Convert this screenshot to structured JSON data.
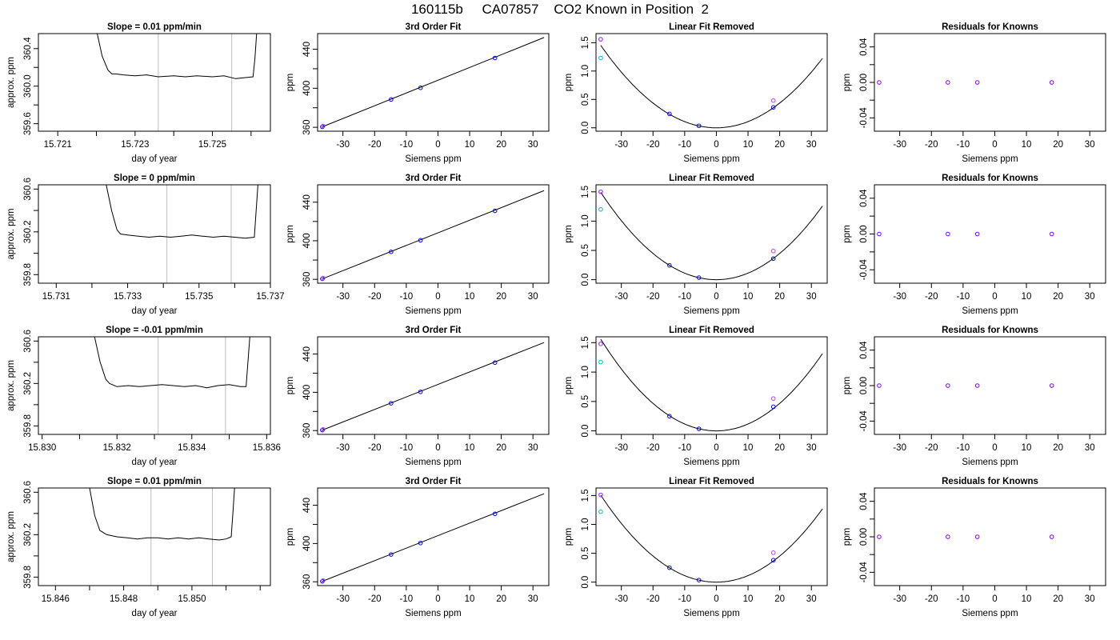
{
  "page": {
    "title": "160115b     CA07857    CO2 Known in Position  2",
    "colors": {
      "axis": "#000000",
      "fit_line": "#000000",
      "vline": "#bebebe",
      "point_blue": "#0000ff",
      "point_cyan": "#00bcd4",
      "point_magenta": "#c23bff",
      "point_violet": "#8000ff"
    }
  },
  "chart_data": [
    {
      "row": 0,
      "panel": "timeseries",
      "type": "line",
      "title": "Slope =  0.01  ppm/min",
      "xlabel": "day of year",
      "ylabel": "approx. ppm",
      "xlim": [
        15.7205,
        15.7265
      ],
      "ylim": [
        359.52,
        360.56
      ],
      "xticks": [
        15.721,
        15.722,
        15.723,
        15.724,
        15.725,
        15.726
      ],
      "xtick_labels": [
        "15.721",
        "",
        "15.723",
        "",
        "15.725",
        ""
      ],
      "yticks": [
        359.6,
        359.8,
        360.0,
        360.2,
        360.4
      ],
      "ytick_labels": [
        "359.6",
        "",
        "360.0",
        "",
        "360.4"
      ],
      "vlines": [
        15.7236,
        15.7255
      ],
      "series": [
        {
          "x": [
            15.722,
            15.72215,
            15.7223,
            15.7224,
            15.7225,
            15.7227,
            15.723,
            15.7233,
            15.7236,
            15.724,
            15.7243,
            15.7246,
            15.725,
            15.7253,
            15.7256,
            15.72605,
            15.7261,
            15.72615
          ],
          "y": [
            360.6,
            360.32,
            360.17,
            360.13,
            360.13,
            360.12,
            360.11,
            360.12,
            360.1,
            360.11,
            360.1,
            360.11,
            360.1,
            360.11,
            360.08,
            360.1,
            360.3,
            360.6
          ]
        }
      ]
    },
    {
      "row": 0,
      "panel": "fit",
      "type": "scatter",
      "title": "3rd Order Fit",
      "xlabel": "Siemens ppm",
      "ylabel": "ppm",
      "xlim": [
        -38,
        35
      ],
      "ylim": [
        356,
        456
      ],
      "xticks": [
        -30,
        -20,
        -10,
        0,
        10,
        20,
        30
      ],
      "xtick_labels": [
        "-30",
        "-20",
        "-10",
        "0",
        "10",
        "20",
        "30"
      ],
      "yticks": [
        360,
        380,
        400,
        420,
        440
      ],
      "ytick_labels": [
        "360",
        "",
        "400",
        "",
        "440"
      ],
      "line": {
        "x": [
          -36.5,
          33.5
        ],
        "y": [
          360.5,
          452
        ]
      },
      "points": {
        "x": [
          -36.5,
          -14.8,
          -5.5,
          18
        ],
        "y": [
          360.5,
          388.5,
          400.5,
          431
        ]
      }
    },
    {
      "row": 0,
      "panel": "linear_removed",
      "type": "scatter",
      "title": "Linear Fit Removed",
      "xlabel": "Siemens ppm",
      "ylabel": "ppm",
      "xlim": [
        -38,
        35
      ],
      "ylim": [
        -0.06,
        1.66
      ],
      "xticks": [
        -30,
        -20,
        -10,
        0,
        10,
        20,
        30
      ],
      "xtick_labels": [
        "-30",
        "-20",
        "-10",
        "0",
        "10",
        "20",
        "30"
      ],
      "yticks": [
        0.0,
        0.5,
        1.0,
        1.5
      ],
      "ytick_labels": [
        "0.0",
        "0.5",
        "1.0",
        "1.5"
      ],
      "curve_coef": 0.00109,
      "points_blue": {
        "x": [
          -36.5,
          -14.8,
          -5.5,
          18
        ],
        "y": [
          1.56,
          0.245,
          0.035,
          0.36
        ]
      },
      "points_cyan": {
        "x": [
          -36.5
        ],
        "y": [
          1.23
        ]
      },
      "points_magenta": {
        "x": [
          -36.5,
          18
        ],
        "y": [
          1.56,
          0.48
        ]
      }
    },
    {
      "row": 0,
      "panel": "residuals",
      "type": "scatter",
      "title": "Residuals for Knowns",
      "xlabel": "Siemens ppm",
      "ylabel": "ppm",
      "xlim": [
        -38,
        35
      ],
      "ylim": [
        -0.055,
        0.055
      ],
      "xticks": [
        -30,
        -20,
        -10,
        0,
        10,
        20,
        30
      ],
      "xtick_labels": [
        "-30",
        "-20",
        "-10",
        "0",
        "10",
        "20",
        "30"
      ],
      "yticks": [
        -0.04,
        -0.02,
        0.0,
        0.02,
        0.04
      ],
      "ytick_labels": [
        "-0.04",
        "",
        "0.00",
        "",
        "0.04"
      ],
      "points": {
        "x": [
          -36.5,
          -14.8,
          -5.5,
          18
        ],
        "y": [
          0,
          0,
          0,
          0
        ]
      }
    },
    {
      "row": 1,
      "panel": "timeseries",
      "type": "line",
      "title": "Slope =  0  ppm/min",
      "xlabel": "day of year",
      "ylabel": "approx. ppm",
      "xlim": [
        15.7305,
        15.737
      ],
      "ylim": [
        359.72,
        360.64
      ],
      "xticks": [
        15.731,
        15.732,
        15.733,
        15.734,
        15.735,
        15.736,
        15.737
      ],
      "xtick_labels": [
        "15.731",
        "",
        "15.733",
        "",
        "15.735",
        "",
        "15.737"
      ],
      "yticks": [
        359.8,
        360.0,
        360.2,
        360.4,
        360.6
      ],
      "ytick_labels": [
        "359.8",
        "",
        "360.2",
        "",
        "360.6"
      ],
      "vlines": [
        15.7341,
        15.7359
      ],
      "series": [
        {
          "x": [
            15.7324,
            15.73255,
            15.7327,
            15.7328,
            15.733,
            15.7333,
            15.7336,
            15.7339,
            15.7342,
            15.7345,
            15.7348,
            15.7351,
            15.7354,
            15.7357,
            15.736,
            15.7363,
            15.73655,
            15.7366,
            15.73665
          ],
          "y": [
            360.64,
            360.4,
            360.22,
            360.18,
            360.17,
            360.16,
            360.15,
            360.16,
            360.15,
            360.16,
            360.17,
            360.16,
            360.15,
            360.16,
            360.15,
            360.14,
            360.15,
            360.4,
            360.64
          ]
        }
      ]
    },
    {
      "row": 1,
      "panel": "fit",
      "type": "scatter",
      "title": "3rd Order Fit",
      "xlabel": "Siemens ppm",
      "ylabel": "ppm",
      "xlim": [
        -38,
        35
      ],
      "ylim": [
        356,
        458
      ],
      "xticks": [
        -30,
        -20,
        -10,
        0,
        10,
        20,
        30
      ],
      "xtick_labels": [
        "-30",
        "-20",
        "-10",
        "0",
        "10",
        "20",
        "30"
      ],
      "yticks": [
        360,
        380,
        400,
        420,
        440
      ],
      "ytick_labels": [
        "360",
        "",
        "400",
        "",
        "440"
      ],
      "line": {
        "x": [
          -36.5,
          33.5
        ],
        "y": [
          360.5,
          452
        ]
      },
      "points": {
        "x": [
          -36.5,
          -14.8,
          -5.5,
          18
        ],
        "y": [
          360.5,
          388.5,
          400.5,
          431
        ]
      }
    },
    {
      "row": 1,
      "panel": "linear_removed",
      "type": "scatter",
      "title": "Linear Fit Removed",
      "xlabel": "Siemens ppm",
      "ylabel": "ppm",
      "xlim": [
        -38,
        35
      ],
      "ylim": [
        -0.06,
        1.62
      ],
      "xticks": [
        -30,
        -20,
        -10,
        0,
        10,
        20,
        30
      ],
      "xtick_labels": [
        "-30",
        "-20",
        "-10",
        "0",
        "10",
        "20",
        "30"
      ],
      "yticks": [
        0.0,
        0.5,
        1.0,
        1.5
      ],
      "ytick_labels": [
        "0.0",
        "0.5",
        "1.0",
        "1.5"
      ],
      "curve_coef": 0.00112,
      "points_blue": {
        "x": [
          -36.5,
          -14.8,
          -5.5,
          18
        ],
        "y": [
          1.5,
          0.245,
          0.035,
          0.36
        ]
      },
      "points_cyan": {
        "x": [
          -36.5
        ],
        "y": [
          1.2
        ]
      },
      "points_magenta": {
        "x": [
          -36.5,
          18
        ],
        "y": [
          1.5,
          0.49
        ]
      }
    },
    {
      "row": 1,
      "panel": "residuals",
      "type": "scatter",
      "title": "Residuals for Knowns",
      "xlabel": "Siemens ppm",
      "ylabel": "ppm",
      "xlim": [
        -38,
        35
      ],
      "ylim": [
        -0.055,
        0.055
      ],
      "xticks": [
        -30,
        -20,
        -10,
        0,
        10,
        20,
        30
      ],
      "xtick_labels": [
        "-30",
        "-20",
        "-10",
        "0",
        "10",
        "20",
        "30"
      ],
      "yticks": [
        -0.04,
        -0.02,
        0.0,
        0.02,
        0.04
      ],
      "ytick_labels": [
        "-0.04",
        "",
        "0.00",
        "",
        "0.04"
      ],
      "points": {
        "x": [
          -36.5,
          -14.8,
          -5.5,
          18
        ],
        "y": [
          0,
          0,
          0,
          0
        ]
      }
    },
    {
      "row": 2,
      "panel": "timeseries",
      "type": "line",
      "title": "Slope =  -0.01  ppm/min",
      "xlabel": "day of year",
      "ylabel": "approx. ppm",
      "xlim": [
        15.8299,
        15.8361
      ],
      "ylim": [
        359.72,
        360.64
      ],
      "xticks": [
        15.83,
        15.831,
        15.832,
        15.833,
        15.834,
        15.835,
        15.836
      ],
      "xtick_labels": [
        "15.830",
        "",
        "15.832",
        "",
        "15.834",
        "",
        "15.836"
      ],
      "yticks": [
        359.8,
        360.0,
        360.2,
        360.4,
        360.6
      ],
      "ytick_labels": [
        "359.8",
        "",
        "360.2",
        "",
        "360.6"
      ],
      "vlines": [
        15.8331,
        15.8349
      ],
      "series": [
        {
          "x": [
            15.8314,
            15.83155,
            15.8317,
            15.8318,
            15.832,
            15.8323,
            15.8326,
            15.8329,
            15.8332,
            15.8335,
            15.8338,
            15.8341,
            15.8344,
            15.8347,
            15.835,
            15.8353,
            15.83545,
            15.8355,
            15.83555
          ],
          "y": [
            360.64,
            360.4,
            360.24,
            360.2,
            360.17,
            360.18,
            360.17,
            360.18,
            360.19,
            360.18,
            360.17,
            360.18,
            360.16,
            360.18,
            360.19,
            360.17,
            360.17,
            360.4,
            360.64
          ]
        }
      ]
    },
    {
      "row": 2,
      "panel": "fit",
      "type": "scatter",
      "title": "3rd Order Fit",
      "xlabel": "Siemens ppm",
      "ylabel": "ppm",
      "xlim": [
        -38,
        35
      ],
      "ylim": [
        356,
        458
      ],
      "xticks": [
        -30,
        -20,
        -10,
        0,
        10,
        20,
        30
      ],
      "xtick_labels": [
        "-30",
        "-20",
        "-10",
        "0",
        "10",
        "20",
        "30"
      ],
      "yticks": [
        360,
        380,
        400,
        420,
        440
      ],
      "ytick_labels": [
        "360",
        "",
        "400",
        "",
        "440"
      ],
      "line": {
        "x": [
          -36.5,
          33.5
        ],
        "y": [
          360.5,
          452
        ]
      },
      "points": {
        "x": [
          -36.5,
          -14.8,
          -5.5,
          18
        ],
        "y": [
          360.5,
          388.5,
          400.5,
          431
        ]
      }
    },
    {
      "row": 2,
      "panel": "linear_removed",
      "type": "scatter",
      "title": "Linear Fit Removed",
      "xlabel": "Siemens ppm",
      "ylabel": "ppm",
      "xlim": [
        -38,
        35
      ],
      "ylim": [
        -0.06,
        1.6
      ],
      "xticks": [
        -30,
        -20,
        -10,
        0,
        10,
        20,
        30
      ],
      "xtick_labels": [
        "-30",
        "-20",
        "-10",
        "0",
        "10",
        "20",
        "30"
      ],
      "yticks": [
        0.0,
        0.5,
        1.0,
        1.5
      ],
      "ytick_labels": [
        "0.0",
        "0.5",
        "1.0",
        "1.5"
      ],
      "curve_coef": 0.00117,
      "points_blue": {
        "x": [
          -36.5,
          -14.8,
          -5.5,
          18
        ],
        "y": [
          1.48,
          0.25,
          0.035,
          0.41
        ]
      },
      "points_cyan": {
        "x": [
          -36.5
        ],
        "y": [
          1.17
        ]
      },
      "points_magenta": {
        "x": [
          -36.5,
          18
        ],
        "y": [
          1.48,
          0.55
        ]
      }
    },
    {
      "row": 2,
      "panel": "residuals",
      "type": "scatter",
      "title": "Residuals for Knowns",
      "xlabel": "Siemens ppm",
      "ylabel": "ppm",
      "xlim": [
        -38,
        35
      ],
      "ylim": [
        -0.055,
        0.055
      ],
      "xticks": [
        -30,
        -20,
        -10,
        0,
        10,
        20,
        30
      ],
      "xtick_labels": [
        "-30",
        "-20",
        "-10",
        "0",
        "10",
        "20",
        "30"
      ],
      "yticks": [
        -0.04,
        -0.02,
        0.0,
        0.02,
        0.04
      ],
      "ytick_labels": [
        "-0.04",
        "",
        "0.00",
        "",
        "0.04"
      ],
      "points": {
        "x": [
          -36.5,
          -14.8,
          -5.5,
          18
        ],
        "y": [
          0,
          0,
          0,
          0
        ]
      }
    },
    {
      "row": 3,
      "panel": "timeseries",
      "type": "line",
      "title": "Slope =  0.01  ppm/min",
      "xlabel": "day of year",
      "ylabel": "approx. ppm",
      "xlim": [
        15.8455,
        15.8523
      ],
      "ylim": [
        359.72,
        360.64
      ],
      "xticks": [
        15.846,
        15.847,
        15.848,
        15.849,
        15.85,
        15.851,
        15.852
      ],
      "xtick_labels": [
        "15.846",
        "",
        "15.848",
        "",
        "15.850",
        "",
        ""
      ],
      "yticks": [
        359.8,
        360.0,
        360.2,
        360.4,
        360.6
      ],
      "ytick_labels": [
        "359.8",
        "",
        "360.2",
        "",
        "360.6"
      ],
      "vlines": [
        15.8488,
        15.8506
      ],
      "series": [
        {
          "x": [
            15.847,
            15.84715,
            15.8473,
            15.8475,
            15.8478,
            15.8481,
            15.8484,
            15.8487,
            15.849,
            15.8493,
            15.8496,
            15.8499,
            15.8502,
            15.8505,
            15.8508,
            15.851,
            15.85115,
            15.8512,
            15.85125
          ],
          "y": [
            360.64,
            360.38,
            360.24,
            360.2,
            360.18,
            360.17,
            360.16,
            360.17,
            360.17,
            360.16,
            360.17,
            360.16,
            360.17,
            360.16,
            360.15,
            360.16,
            360.18,
            360.4,
            360.64
          ]
        }
      ]
    },
    {
      "row": 3,
      "panel": "fit",
      "type": "scatter",
      "title": "3rd Order Fit",
      "xlabel": "Siemens ppm",
      "ylabel": "ppm",
      "xlim": [
        -38,
        35
      ],
      "ylim": [
        356,
        458
      ],
      "xticks": [
        -30,
        -20,
        -10,
        0,
        10,
        20,
        30
      ],
      "xtick_labels": [
        "-30",
        "-20",
        "-10",
        "0",
        "10",
        "20",
        "30"
      ],
      "yticks": [
        360,
        380,
        400,
        420,
        440
      ],
      "ytick_labels": [
        "360",
        "",
        "400",
        "",
        "440"
      ],
      "line": {
        "x": [
          -36.5,
          33.5
        ],
        "y": [
          360.5,
          452
        ]
      },
      "points": {
        "x": [
          -36.5,
          -14.8,
          -5.5,
          18
        ],
        "y": [
          360.5,
          388.5,
          400.5,
          431
        ]
      }
    },
    {
      "row": 3,
      "panel": "linear_removed",
      "type": "scatter",
      "title": "Linear Fit Removed",
      "xlabel": "Siemens ppm",
      "ylabel": "ppm",
      "xlim": [
        -38,
        35
      ],
      "ylim": [
        -0.06,
        1.63
      ],
      "xticks": [
        -30,
        -20,
        -10,
        0,
        10,
        20,
        30
      ],
      "xtick_labels": [
        "-30",
        "-20",
        "-10",
        "0",
        "10",
        "20",
        "30"
      ],
      "yticks": [
        0.0,
        0.5,
        1.0,
        1.5
      ],
      "ytick_labels": [
        "0.0",
        "0.5",
        "1.0",
        "1.5"
      ],
      "curve_coef": 0.00113,
      "points_blue": {
        "x": [
          -36.5,
          -14.8,
          -5.5,
          18
        ],
        "y": [
          1.51,
          0.25,
          0.035,
          0.38
        ]
      },
      "points_cyan": {
        "x": [
          -36.5
        ],
        "y": [
          1.22
        ]
      },
      "points_magenta": {
        "x": [
          -36.5,
          18
        ],
        "y": [
          1.51,
          0.51
        ]
      }
    },
    {
      "row": 3,
      "panel": "residuals",
      "type": "scatter",
      "title": "Residuals for Knowns",
      "xlabel": "Siemens ppm",
      "ylabel": "ppm",
      "xlim": [
        -38,
        35
      ],
      "ylim": [
        -0.055,
        0.055
      ],
      "xticks": [
        -30,
        -20,
        -10,
        0,
        10,
        20,
        30
      ],
      "xtick_labels": [
        "-30",
        "-20",
        "-10",
        "0",
        "10",
        "20",
        "30"
      ],
      "yticks": [
        -0.04,
        -0.02,
        0.0,
        0.02,
        0.04
      ],
      "ytick_labels": [
        "-0.04",
        "",
        "0.00",
        "",
        "0.04"
      ],
      "points": {
        "x": [
          -36.5,
          -14.8,
          -5.5,
          18
        ],
        "y": [
          0,
          0,
          0,
          0
        ]
      }
    }
  ]
}
